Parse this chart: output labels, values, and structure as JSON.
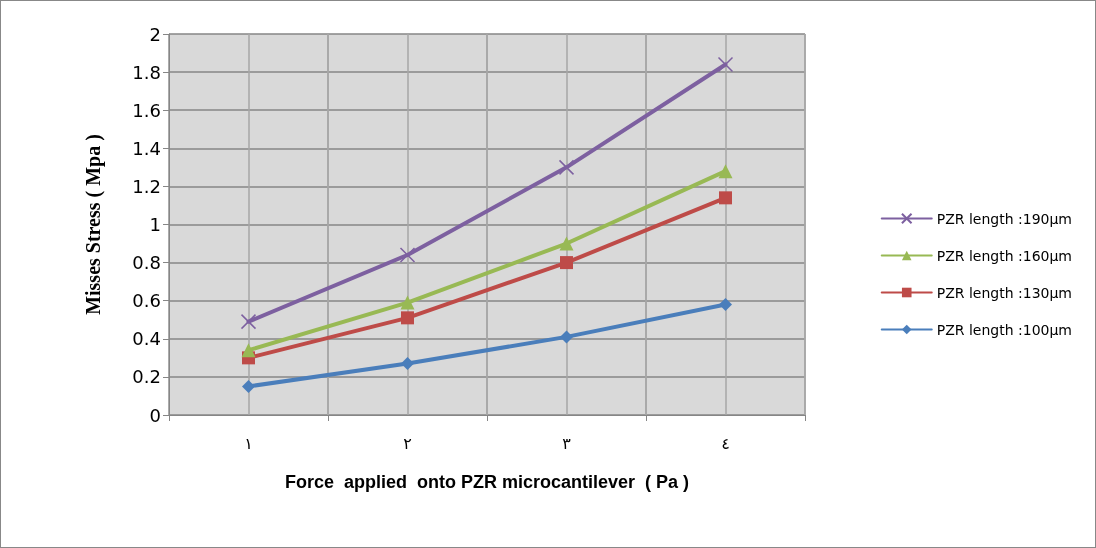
{
  "chart_data": {
    "type": "line",
    "xlabel": "Force  applied  onto PZR microcantilever  ( Pa )",
    "ylabel": "Misses Stress ( Mpa )",
    "categories": [
      "١",
      "٢",
      "٣",
      "٤"
    ],
    "series": [
      {
        "name": "PZR length :100µm",
        "color": "#4a7ebb",
        "marker": "diamond",
        "values": [
          0.15,
          0.27,
          0.41,
          0.58
        ]
      },
      {
        "name": "PZR length :130µm",
        "color": "#be4b48",
        "marker": "square",
        "values": [
          0.3,
          0.51,
          0.8,
          1.14
        ]
      },
      {
        "name": "PZR length :160µm",
        "color": "#98b954",
        "marker": "triangle",
        "values": [
          0.34,
          0.59,
          0.9,
          1.28
        ]
      },
      {
        "name": "PZR length :190µm",
        "color": "#7d60a0",
        "marker": "cross",
        "values": [
          0.49,
          0.84,
          1.3,
          1.84
        ]
      }
    ],
    "ylim": [
      0,
      2
    ],
    "yticks": [
      0,
      0.2,
      0.4,
      0.6,
      0.8,
      1,
      1.2,
      1.4,
      1.6,
      1.8,
      2
    ],
    "grid": true,
    "legend": "right",
    "line_style": "solid"
  }
}
